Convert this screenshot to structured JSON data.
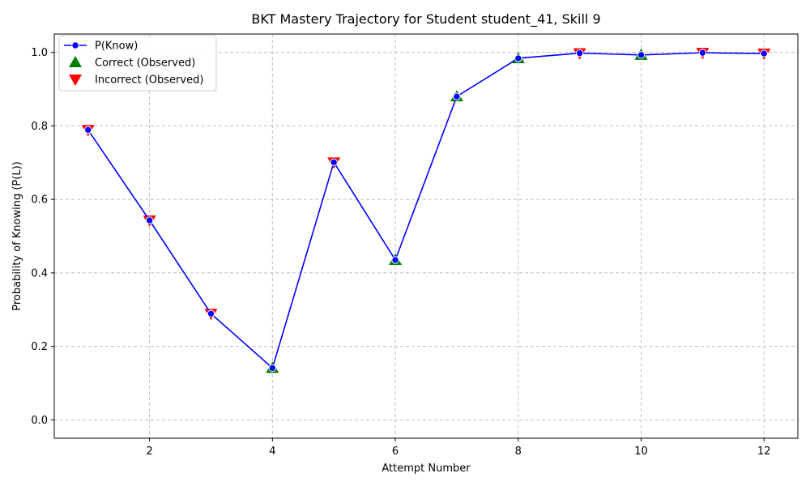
{
  "chart_data": {
    "type": "line",
    "title": "BKT Mastery Trajectory for Student student_41, Skill 9",
    "xlabel": "Attempt Number",
    "ylabel": "Probability of Knowing (P(L))",
    "xlim": [
      0.45,
      12.55
    ],
    "ylim": [
      -0.05,
      1.05
    ],
    "xticks": [
      2,
      4,
      6,
      8,
      10,
      12
    ],
    "xtick_labels": [
      "2",
      "4",
      "6",
      "8",
      "10",
      "12"
    ],
    "yticks": [
      0.0,
      0.2,
      0.4,
      0.6,
      0.8,
      1.0
    ],
    "ytick_labels": [
      "0.0",
      "0.2",
      "0.4",
      "0.6",
      "0.8",
      "1.0"
    ],
    "grid": true,
    "legend_position": "top-left",
    "x": [
      1,
      2,
      3,
      4,
      5,
      6,
      7,
      8,
      9,
      10,
      11,
      12
    ],
    "series": [
      {
        "name": "P(Know)",
        "kind": "line",
        "color": "#0000ff",
        "values": [
          0.789,
          0.543,
          0.289,
          0.141,
          0.701,
          0.435,
          0.88,
          0.984,
          0.998,
          0.993,
          0.999,
          0.997
        ]
      },
      {
        "name": "Correct (Observed)",
        "kind": "marker",
        "marker": "triangle-up",
        "color": "#008000",
        "x": [
          4,
          6,
          7,
          8,
          10
        ],
        "values": [
          0.141,
          0.435,
          0.88,
          0.984,
          0.993
        ]
      },
      {
        "name": "Incorrect (Observed)",
        "kind": "marker",
        "marker": "triangle-down",
        "color": "#ff0000",
        "x": [
          1,
          2,
          3,
          5,
          9,
          11,
          12
        ],
        "values": [
          0.789,
          0.543,
          0.289,
          0.701,
          0.998,
          0.999,
          0.997
        ]
      }
    ]
  }
}
